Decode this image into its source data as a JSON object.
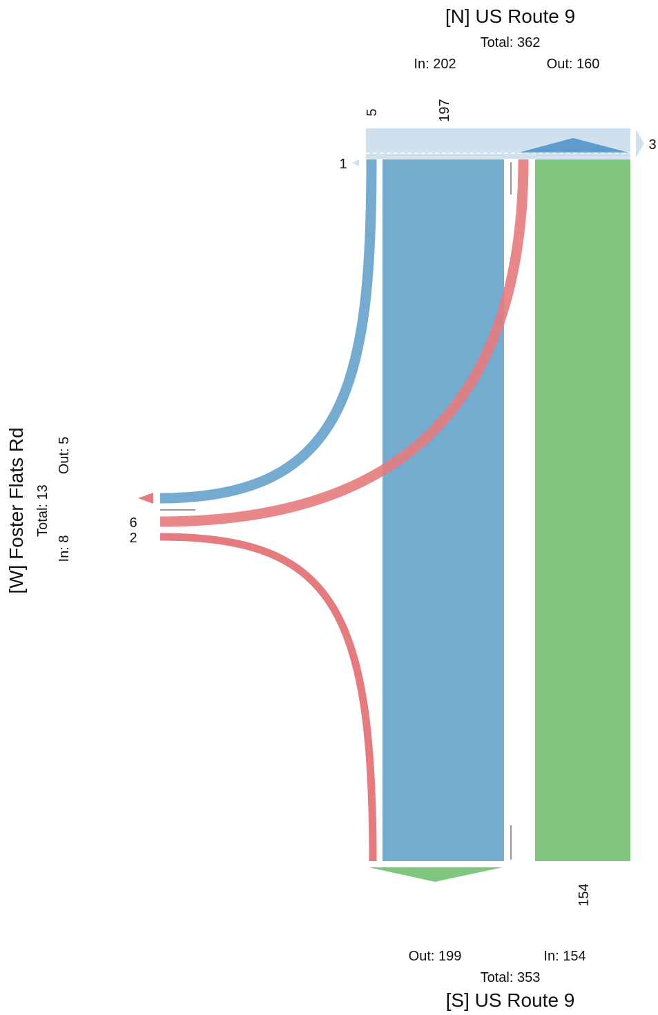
{
  "colors": {
    "blue": "#76abd0",
    "green": "#80c680",
    "red": "#e57b7e",
    "light_blue": "#cfe1ee",
    "dark_blue": "#5f9bcb",
    "gray": "#999999"
  },
  "north": {
    "name": "[N] US Route 9",
    "total": "Total: 362",
    "in": "In: 202",
    "out": "Out: 160",
    "flow_labels": {
      "left_turn": "5",
      "through": "197",
      "u_turn": "1",
      "right_overflow": "3"
    }
  },
  "south": {
    "name": "[S] US Route 9",
    "total": "Total: 353",
    "in": "In: 154",
    "out": "Out: 199",
    "flow_labels": {
      "through": "154"
    }
  },
  "west": {
    "name": "[W] Foster Flats Rd",
    "total": "Total: 13",
    "in": "In: 8",
    "out": "Out: 5",
    "flow_labels": {
      "to_north": "6",
      "to_south": "2"
    }
  },
  "chart_data": {
    "type": "sankey",
    "nodes": [
      "[N] US Route 9",
      "[S] US Route 9",
      "[W] Foster Flats Rd"
    ],
    "flows": [
      {
        "from": "[N] US Route 9",
        "to": "[S] US Route 9",
        "value": 197
      },
      {
        "from": "[N] US Route 9",
        "to": "[W] Foster Flats Rd",
        "value": 5
      },
      {
        "from": "[N] US Route 9",
        "to": "[N] US Route 9",
        "value": 1
      },
      {
        "from": "[S] US Route 9",
        "to": "[N] US Route 9",
        "value": 154
      },
      {
        "from": "[W] Foster Flats Rd",
        "to": "[N] US Route 9",
        "value": 6
      },
      {
        "from": "[W] Foster Flats Rd",
        "to": "[S] US Route 9",
        "value": 2
      }
    ]
  }
}
